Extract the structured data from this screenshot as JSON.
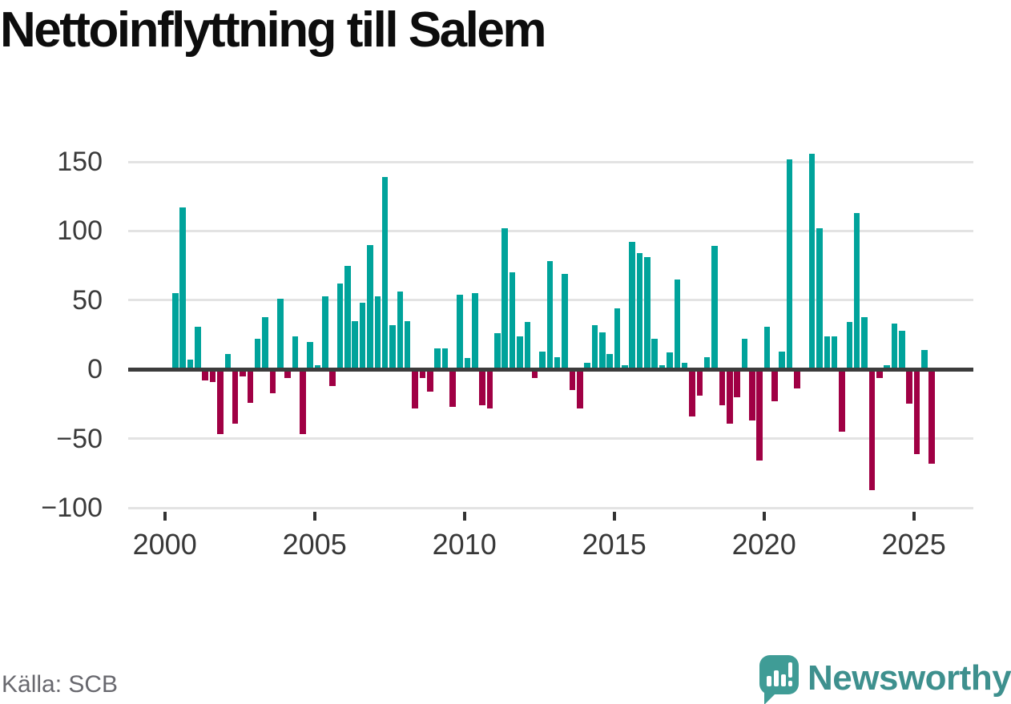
{
  "title": "Nettoinflyttning till Salem",
  "source": "Källa: SCB",
  "brand": {
    "name": "Newsworthy",
    "icon": "newsworthy-speech-bubble-barchart-icon"
  },
  "colors": {
    "positive_bar": "#00a39b",
    "negative_bar": "#a00044",
    "zero_line": "#3c3c3c",
    "gridline": "#e3e3e3",
    "axis_text": "#3a3a3a",
    "title_text": "#0d0d0d",
    "source_text": "#68686e",
    "brand_teal": "#3e908e"
  },
  "chart_data": {
    "type": "bar",
    "title": "Nettoinflyttning till Salem",
    "xlabel": "",
    "ylabel": "",
    "ylim": [
      -100,
      150
    ],
    "grid": "horizontal",
    "legend": "none",
    "yticks": [
      150,
      100,
      50,
      0,
      -50,
      -100
    ],
    "ytick_labels": [
      "150",
      "100",
      "50",
      "0",
      "−50",
      "−100"
    ],
    "xticks": [
      2000,
      2005,
      2010,
      2015,
      2020,
      2025
    ],
    "xtick_labels": [
      "2000",
      "2005",
      "2010",
      "2015",
      "2020",
      "2025"
    ],
    "x": [
      "2000Q2",
      "2000Q3",
      "2000Q4",
      "2001Q1",
      "2001Q2",
      "2001Q3",
      "2001Q4",
      "2002Q1",
      "2002Q2",
      "2002Q3",
      "2002Q4",
      "2003Q1",
      "2003Q2",
      "2003Q3",
      "2003Q4",
      "2004Q1",
      "2004Q2",
      "2004Q3",
      "2004Q4",
      "2005Q1",
      "2005Q2",
      "2005Q3",
      "2005Q4",
      "2006Q1",
      "2006Q2",
      "2006Q3",
      "2006Q4",
      "2007Q1",
      "2007Q2",
      "2007Q3",
      "2007Q4",
      "2008Q1",
      "2008Q2",
      "2008Q3",
      "2008Q4",
      "2009Q1",
      "2009Q2",
      "2009Q3",
      "2009Q4",
      "2010Q1",
      "2010Q2",
      "2010Q3",
      "2010Q4",
      "2011Q1",
      "2011Q2",
      "2011Q3",
      "2011Q4",
      "2012Q1",
      "2012Q2",
      "2012Q3",
      "2012Q4",
      "2013Q1",
      "2013Q2",
      "2013Q3",
      "2013Q4",
      "2014Q1",
      "2014Q2",
      "2014Q3",
      "2014Q4",
      "2015Q1",
      "2015Q2",
      "2015Q3",
      "2015Q4",
      "2016Q1",
      "2016Q2",
      "2016Q3",
      "2016Q4",
      "2017Q1",
      "2017Q2",
      "2017Q3",
      "2017Q4",
      "2018Q1",
      "2018Q2",
      "2018Q3",
      "2018Q4",
      "2019Q1",
      "2019Q2",
      "2019Q3",
      "2019Q4",
      "2020Q1",
      "2020Q2",
      "2020Q3",
      "2020Q4",
      "2021Q1",
      "2021Q2",
      "2021Q3",
      "2021Q4",
      "2022Q1",
      "2022Q2",
      "2022Q3",
      "2022Q4",
      "2023Q1",
      "2023Q2",
      "2023Q3",
      "2023Q4",
      "2024Q1",
      "2024Q2",
      "2024Q3",
      "2024Q4",
      "2025Q1",
      "2025Q2",
      "2025Q3"
    ],
    "values": [
      55,
      117,
      7,
      31,
      -8,
      -9,
      -47,
      11,
      -39,
      -5,
      -24,
      22,
      38,
      -17,
      51,
      -6,
      24,
      -47,
      20,
      3,
      53,
      -12,
      62,
      75,
      35,
      48,
      90,
      53,
      139,
      32,
      56,
      35,
      -28,
      -6,
      -16,
      15,
      15,
      -27,
      54,
      8,
      55,
      -26,
      -28,
      26,
      102,
      70,
      24,
      34,
      -6,
      13,
      78,
      9,
      69,
      -15,
      -28,
      5,
      32,
      27,
      11,
      44,
      3,
      92,
      84,
      81,
      22,
      3,
      12,
      65,
      5,
      -34,
      -19,
      9,
      89,
      -26,
      -39,
      -20,
      22,
      -37,
      -66,
      31,
      -23,
      13,
      152,
      -14,
      0,
      156,
      102,
      24,
      24,
      -45,
      34,
      113,
      38,
      -87,
      -6,
      3,
      33,
      28,
      -25,
      -61,
      14,
      -68
    ],
    "positive_color": "#00a39b",
    "negative_color": "#a00044"
  }
}
